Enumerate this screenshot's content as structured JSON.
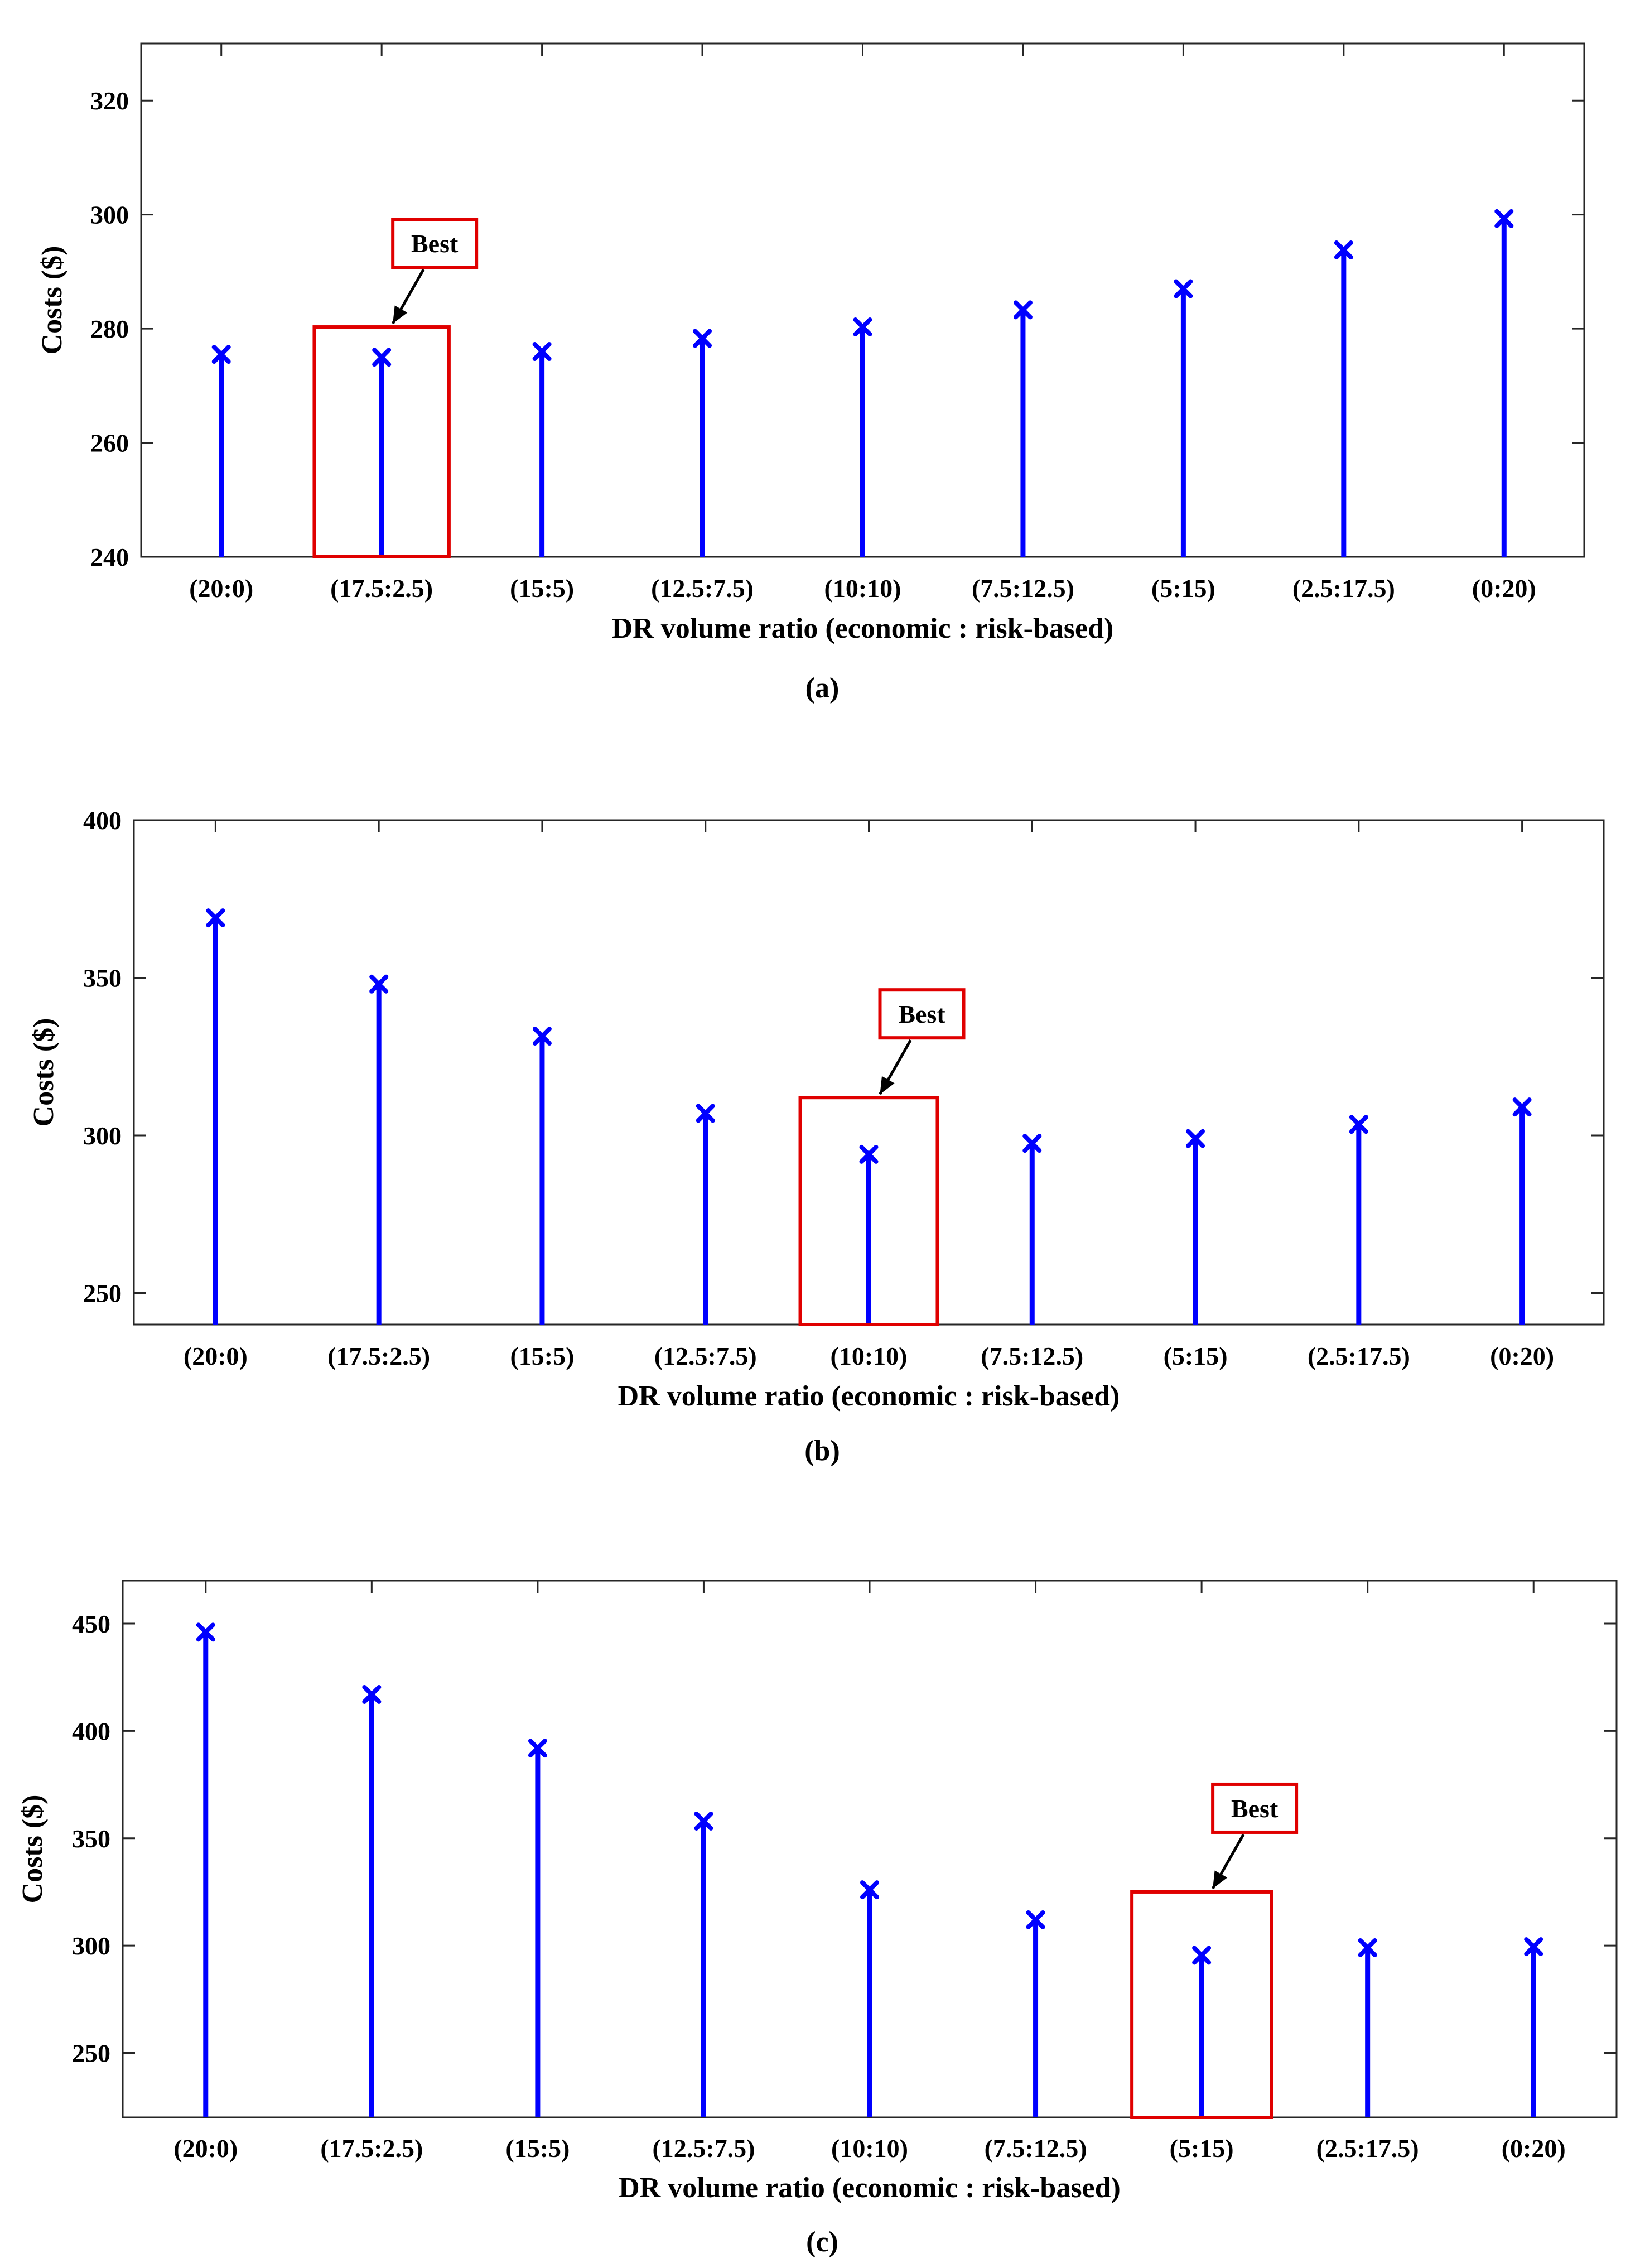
{
  "colors": {
    "stem": "#0000ff",
    "highlight": "#e00000",
    "axis": "#262626",
    "text": "#000000"
  },
  "chart_data": [
    {
      "type": "stem",
      "panel_label": "(a)",
      "xlabel": "DR volume ratio (economic : risk-based)",
      "ylabel": "Costs ($)",
      "categories": [
        "(20:0)",
        "(17.5:2.5)",
        "(15:5)",
        "(12.5:7.5)",
        "(10:10)",
        "(7.5:12.5)",
        "(5:15)",
        "(2.5:17.5)",
        "(0:20)"
      ],
      "values": [
        275.5,
        275,
        276,
        278.3,
        280.3,
        283.3,
        287,
        293.8,
        299.3
      ],
      "ylim": [
        240,
        330
      ],
      "yticks": [
        240,
        260,
        280,
        300,
        320
      ],
      "marker": "x",
      "best_index": 1,
      "best_label": "Best",
      "box_ylim": [
        240,
        280.3
      ]
    },
    {
      "type": "stem",
      "panel_label": "(b)",
      "xlabel": "DR volume ratio (economic : risk-based)",
      "ylabel": "Costs ($)",
      "categories": [
        "(20:0)",
        "(17.5:2.5)",
        "(15:5)",
        "(12.5:7.5)",
        "(10:10)",
        "(7.5:12.5)",
        "(5:15)",
        "(2.5:17.5)",
        "(0:20)"
      ],
      "values": [
        369,
        348,
        331.5,
        307,
        294,
        297.5,
        299,
        303.5,
        309
      ],
      "ylim": [
        240,
        400
      ],
      "yticks": [
        250,
        300,
        350,
        400
      ],
      "marker": "x",
      "best_index": 4,
      "best_label": "Best",
      "box_ylim": [
        240,
        312
      ]
    },
    {
      "type": "stem",
      "panel_label": "(c)",
      "xlabel": "DR volume ratio (economic : risk-based)",
      "ylabel": "Costs ($)",
      "categories": [
        "(20:0)",
        "(17.5:2.5)",
        "(15:5)",
        "(12.5:7.5)",
        "(10:10)",
        "(7.5:12.5)",
        "(5:15)",
        "(2.5:17.5)",
        "(0:20)"
      ],
      "values": [
        446,
        417,
        392,
        358,
        326,
        312,
        295.5,
        299,
        299.5
      ],
      "ylim": [
        220,
        470
      ],
      "yticks": [
        250,
        300,
        350,
        400,
        450
      ],
      "marker": "x",
      "best_index": 6,
      "best_label": "Best",
      "box_ylim": [
        220,
        325
      ]
    }
  ]
}
